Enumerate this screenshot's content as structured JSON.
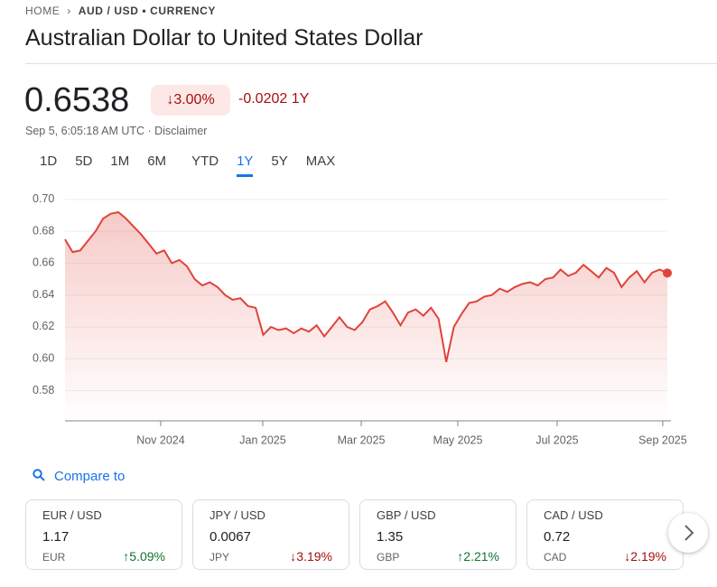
{
  "breadcrumb": {
    "home": "HOME",
    "current": "AUD / USD • CURRENCY"
  },
  "title": "Australian Dollar to United States Dollar",
  "quote": {
    "price": "0.6538",
    "change_pct": "3.00%",
    "change_abs": "-0.0202 1Y",
    "timestamp": "Sep 5, 6:05:18 AM UTC · Disclaimer"
  },
  "tabs": [
    "1D",
    "5D",
    "1M",
    "6M",
    "YTD",
    "1Y",
    "5Y",
    "MAX"
  ],
  "chart_data": {
    "type": "line",
    "color": "#e0433a",
    "series": [
      {
        "name": "AUD / USD",
        "color": "#e0433a",
        "values": [
          0.675,
          0.667,
          0.668,
          0.674,
          0.68,
          0.688,
          0.691,
          0.692,
          0.688,
          0.683,
          0.678,
          0.672,
          0.666,
          0.668,
          0.66,
          0.662,
          0.658,
          0.65,
          0.646,
          0.648,
          0.645,
          0.64,
          0.637,
          0.638,
          0.633,
          0.632,
          0.615,
          0.62,
          0.618,
          0.619,
          0.616,
          0.619,
          0.617,
          0.621,
          0.614,
          0.62,
          0.626,
          0.62,
          0.618,
          0.623,
          0.631,
          0.633,
          0.636,
          0.629,
          0.621,
          0.629,
          0.631,
          0.627,
          0.632,
          0.625,
          0.598,
          0.62,
          0.628,
          0.635,
          0.636,
          0.639,
          0.64,
          0.644,
          0.642,
          0.645,
          0.647,
          0.648,
          0.646,
          0.65,
          0.651,
          0.656,
          0.652,
          0.654,
          0.659,
          0.655,
          0.651,
          0.657,
          0.654,
          0.645,
          0.651,
          0.655,
          0.648,
          0.654,
          0.656,
          0.6538
        ]
      }
    ],
    "xlim": [
      0,
      79
    ],
    "xticks": [
      {
        "value": 12.55,
        "label": "Nov 2024"
      },
      {
        "value": 25.94,
        "label": "Jan 2025"
      },
      {
        "value": 38.85,
        "label": "Mar 2025"
      },
      {
        "value": 51.52,
        "label": "May 2025"
      },
      {
        "value": 64.55,
        "label": "Jul 2025"
      },
      {
        "value": 78.4,
        "label": "Sep 2025"
      }
    ],
    "ylim": [
      0.561,
      0.709
    ],
    "yticks": [
      0.58,
      {
        "value": 0.6,
        "label": "0.60"
      },
      0.62,
      0.64,
      0.66,
      0.68,
      {
        "value": 0.7,
        "label": "0.70"
      }
    ],
    "grid": true
  },
  "compare": {
    "label": "Compare to",
    "cards": [
      {
        "pair": "EUR / USD",
        "price": "1.17",
        "code": "EUR",
        "change": "5.09%",
        "dir": "up"
      },
      {
        "pair": "JPY / USD",
        "price": "0.0067",
        "code": "JPY",
        "change": "3.19%",
        "dir": "down"
      },
      {
        "pair": "GBP / USD",
        "price": "1.35",
        "code": "GBP",
        "change": "2.21%",
        "dir": "up"
      },
      {
        "pair": "CAD / USD",
        "price": "0.72",
        "code": "CAD",
        "change": "2.19%",
        "dir": "down"
      }
    ]
  }
}
